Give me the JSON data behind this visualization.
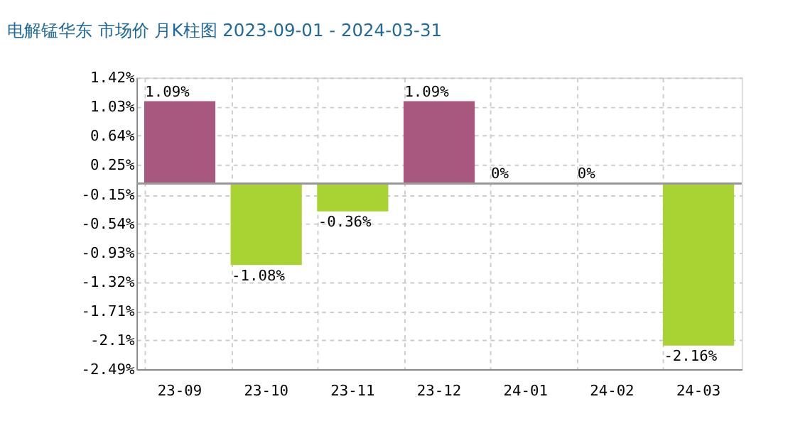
{
  "chart_data": {
    "type": "bar",
    "title": "电解锰华东 市场价 月K柱图 2023-09-01 - 2024-03-31",
    "categories": [
      "23-09",
      "23-10",
      "23-11",
      "23-12",
      "24-01",
      "24-02",
      "24-03"
    ],
    "values": [
      1.09,
      -1.08,
      -0.36,
      1.09,
      0,
      0,
      -2.16
    ],
    "colors": [
      "#a8577e",
      "#a9d333",
      "#a9d333",
      "#a8577e",
      "#a8577e",
      "#a8577e",
      "#a9d333"
    ],
    "value_labels": [
      "1.09%",
      "-1.08%",
      "-0.36%",
      "1.09%",
      "0%",
      "0%",
      "-2.16%"
    ],
    "ylim": [
      -2.49,
      1.42
    ],
    "yticks": [
      {
        "value": 1.42,
        "label": "1.42%"
      },
      {
        "value": 1.03,
        "label": "1.03%"
      },
      {
        "value": 0.64,
        "label": "0.64%"
      },
      {
        "value": 0.25,
        "label": "0.25%"
      },
      {
        "value": -0.15,
        "label": "-0.15%"
      },
      {
        "value": -0.54,
        "label": "-0.54%"
      },
      {
        "value": -0.93,
        "label": "-0.93%"
      },
      {
        "value": -1.32,
        "label": "-1.32%"
      },
      {
        "value": -1.71,
        "label": "-1.71%"
      },
      {
        "value": -2.1,
        "label": "-2.1%"
      },
      {
        "value": -2.49,
        "label": "-2.49%"
      }
    ],
    "ref_lines": [
      {
        "axis": "y",
        "value": 0,
        "color": "#999999"
      }
    ],
    "grid": true
  }
}
